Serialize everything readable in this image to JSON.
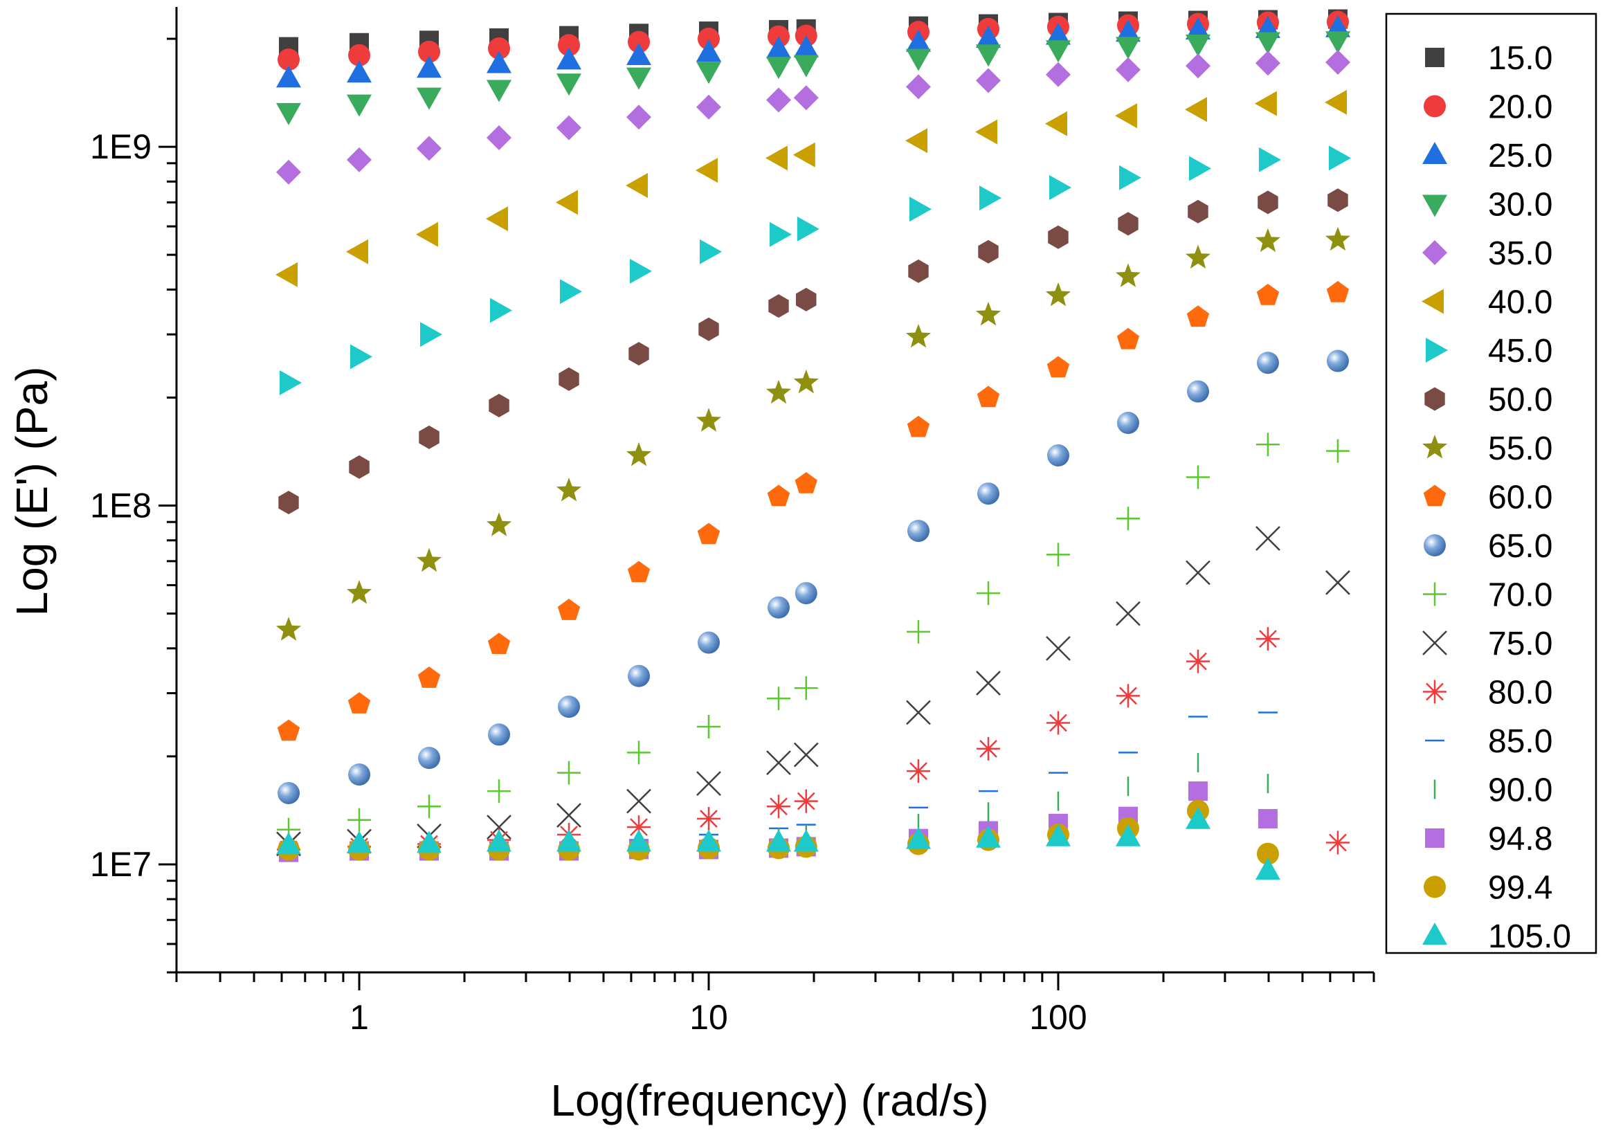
{
  "chart_data": {
    "type": "scatter",
    "title": "",
    "xlabel": "Log(frequency) (rad/s)",
    "ylabel": "Log (E') (Pa)",
    "xscale": "log",
    "yscale": "log",
    "xlim": [
      0.3,
      800
    ],
    "ylim": [
      5000000,
      2400000000
    ],
    "x_ticks": [
      1,
      10,
      100
    ],
    "x_tick_labels": [
      "1",
      "10",
      "100"
    ],
    "y_ticks": [
      10000000,
      100000000,
      1000000000
    ],
    "y_tick_labels": [
      "1E7",
      "1E8",
      "1E9"
    ],
    "legend_position": "right",
    "x": [
      0.628,
      1.0,
      1.585,
      2.512,
      3.981,
      6.31,
      10.0,
      15.85,
      19.0,
      39.81,
      63.1,
      100.0,
      158.5,
      251.2,
      398.1,
      631.0
    ],
    "series": [
      {
        "name": "15.0",
        "marker": "square",
        "color": "#404040",
        "values": [
          1900000000.0,
          1950000000.0,
          1980000000.0,
          2010000000.0,
          2040000000.0,
          2070000000.0,
          2100000000.0,
          2120000000.0,
          2130000000.0,
          2170000000.0,
          2200000000.0,
          2220000000.0,
          2240000000.0,
          2250000000.0,
          2260000000.0,
          2270000000.0
        ]
      },
      {
        "name": "20.0",
        "marker": "circle",
        "color": "#ee3b3b",
        "values": [
          1750000000.0,
          1800000000.0,
          1840000000.0,
          1880000000.0,
          1920000000.0,
          1960000000.0,
          2000000000.0,
          2030000000.0,
          2040000000.0,
          2090000000.0,
          2130000000.0,
          2160000000.0,
          2180000000.0,
          2200000000.0,
          2220000000.0,
          2230000000.0
        ]
      },
      {
        "name": "25.0",
        "marker": "triangle-up",
        "color": "#1f6fe0",
        "values": [
          1550000000.0,
          1600000000.0,
          1650000000.0,
          1700000000.0,
          1740000000.0,
          1790000000.0,
          1830000000.0,
          1870000000.0,
          1880000000.0,
          1950000000.0,
          2000000000.0,
          2040000000.0,
          2080000000.0,
          2110000000.0,
          2130000000.0,
          2140000000.0
        ]
      },
      {
        "name": "30.0",
        "marker": "triangle-down",
        "color": "#3aaa5c",
        "values": [
          1250000000.0,
          1320000000.0,
          1380000000.0,
          1450000000.0,
          1510000000.0,
          1570000000.0,
          1630000000.0,
          1680000000.0,
          1700000000.0,
          1770000000.0,
          1820000000.0,
          1870000000.0,
          1910000000.0,
          1940000000.0,
          1970000000.0,
          1980000000.0
        ]
      },
      {
        "name": "35.0",
        "marker": "diamond",
        "color": "#b36fe0",
        "values": [
          850000000.0,
          920000000.0,
          990000000.0,
          1060000000.0,
          1130000000.0,
          1210000000.0,
          1290000000.0,
          1350000000.0,
          1370000000.0,
          1470000000.0,
          1530000000.0,
          1590000000.0,
          1640000000.0,
          1680000000.0,
          1710000000.0,
          1720000000.0
        ]
      },
      {
        "name": "40.0",
        "marker": "triangle-left",
        "color": "#c9a000",
        "values": [
          440000000.0,
          510000000.0,
          570000000.0,
          630000000.0,
          700000000.0,
          780000000.0,
          860000000.0,
          930000000.0,
          950000000.0,
          1040000000.0,
          1100000000.0,
          1160000000.0,
          1220000000.0,
          1270000000.0,
          1320000000.0,
          1330000000.0
        ]
      },
      {
        "name": "45.0",
        "marker": "triangle-right",
        "color": "#1ec9c9",
        "values": [
          220000000.0,
          260000000.0,
          300000000.0,
          350000000.0,
          395000000.0,
          450000000.0,
          510000000.0,
          570000000.0,
          590000000.0,
          670000000.0,
          720000000.0,
          770000000.0,
          820000000.0,
          870000000.0,
          920000000.0,
          930000000.0
        ]
      },
      {
        "name": "50.0",
        "marker": "hexagon",
        "color": "#7a4a45",
        "values": [
          102000000.0,
          128000000.0,
          155000000.0,
          190000000.0,
          225000000.0,
          265000000.0,
          310000000.0,
          360000000.0,
          375000000.0,
          450000000.0,
          510000000.0,
          560000000.0,
          610000000.0,
          660000000.0,
          700000000.0,
          710000000.0
        ]
      },
      {
        "name": "55.0",
        "marker": "star",
        "color": "#8f8f10",
        "values": [
          45000000.0,
          57000000.0,
          70000000.0,
          88000000.0,
          110000000.0,
          138000000.0,
          172000000.0,
          206000000.0,
          220000000.0,
          295000000.0,
          340000000.0,
          385000000.0,
          435000000.0,
          490000000.0,
          545000000.0,
          550000000.0
        ]
      },
      {
        "name": "60.0",
        "marker": "pentagon",
        "color": "#ff6a0d",
        "values": [
          23500000.0,
          28000000.0,
          33000000.0,
          41000000.0,
          51000000.0,
          65000000.0,
          83000000.0,
          106000000.0,
          115000000.0,
          165000000.0,
          200000000.0,
          242000000.0,
          290000000.0,
          335000000.0,
          385000000.0,
          392000000.0
        ]
      },
      {
        "name": "65.0",
        "marker": "sphere",
        "color": "#6b9ad4",
        "values": [
          15800000.0,
          17800000.0,
          19800000.0,
          23000000.0,
          27500000.0,
          33500000.0,
          41500000.0,
          52000000.0,
          57000000.0,
          85000000.0,
          108000000.0,
          138000000.0,
          170000000.0,
          208000000.0,
          250000000.0,
          253000000.0
        ]
      },
      {
        "name": "70.0",
        "marker": "plus",
        "color": "#5ac82e",
        "values": [
          12500000.0,
          13300000.0,
          14500000.0,
          16000000.0,
          18000000.0,
          20500000.0,
          24200000.0,
          29000000.0,
          31000000.0,
          44500000.0,
          57000000.0,
          73000000.0,
          92000000.0,
          120000000.0,
          148000000.0,
          142000000.0
        ]
      },
      {
        "name": "75.0",
        "marker": "x",
        "color": "#404040",
        "values": [
          11400000.0,
          11600000.0,
          12000000.0,
          12700000.0,
          13700000.0,
          15000000.0,
          16800000.0,
          19200000.0,
          20200000.0,
          26500000.0,
          32000000.0,
          40000000.0,
          50000000.0,
          65000000.0,
          81000000.0,
          61000000.0
        ]
      },
      {
        "name": "80.0",
        "marker": "asterisk",
        "color": "#ee3b3b",
        "values": [
          11000000.0,
          11200000.0,
          11400000.0,
          11700000.0,
          12100000.0,
          12700000.0,
          13400000.0,
          14500000.0,
          15000000.0,
          18200000.0,
          21000000.0,
          24800000.0,
          29500000.0,
          36800000.0,
          42500000.0,
          11500000.0
        ]
      },
      {
        "name": "85.0",
        "marker": "hbar",
        "color": "#1f6fe0",
        "values": [
          11100000.0,
          11100000.0,
          11200000.0,
          11300000.0,
          11500000.0,
          11700000.0,
          12100000.0,
          12600000.0,
          12900000.0,
          14400000.0,
          16000000.0,
          18000000.0,
          20500000.0,
          25800000.0,
          26500000.0,
          null
        ]
      },
      {
        "name": "90.0",
        "marker": "vbar",
        "color": "#3aaa5c",
        "values": [
          11200000.0,
          11200000.0,
          11200000.0,
          11200000.0,
          11300000.0,
          11400000.0,
          11600000.0,
          11900000.0,
          12100000.0,
          13000000.0,
          14000000.0,
          15000000.0,
          16500000.0,
          19200000.0,
          16800000.0,
          null
        ]
      },
      {
        "name": "94.8",
        "marker": "square",
        "color": "#b36fe0",
        "values": [
          10800000.0,
          10900000.0,
          10900000.0,
          10900000.0,
          10900000.0,
          11000000.0,
          11000000.0,
          11100000.0,
          11200000.0,
          11800000.0,
          12400000.0,
          13000000.0,
          13600000.0,
          16000000.0,
          13400000.0,
          null
        ]
      },
      {
        "name": "99.4",
        "marker": "circle",
        "color": "#c9a000",
        "values": [
          11000000.0,
          11000000.0,
          11000000.0,
          11000000.0,
          11000000.0,
          11000000.0,
          11100000.0,
          11100000.0,
          11200000.0,
          11400000.0,
          11700000.0,
          12100000.0,
          12600000.0,
          14100000.0,
          10700000.0,
          null
        ]
      },
      {
        "name": "105.0",
        "marker": "triangle-up",
        "color": "#1ec9c9",
        "values": [
          11300000.0,
          11400000.0,
          11400000.0,
          11500000.0,
          11500000.0,
          11500000.0,
          11500000.0,
          11500000.0,
          11500000.0,
          11700000.0,
          11800000.0,
          11900000.0,
          11900000.0,
          13300000.0,
          9600000.0,
          null
        ]
      }
    ]
  }
}
